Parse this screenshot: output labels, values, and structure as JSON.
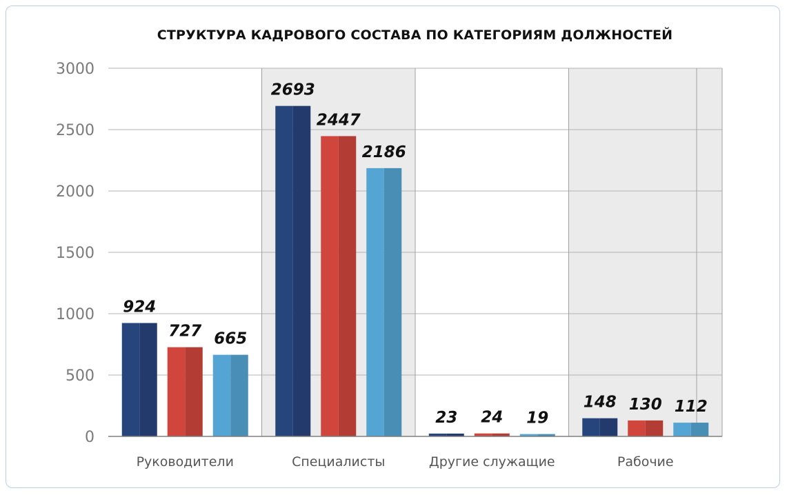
{
  "chart_data": {
    "type": "bar",
    "title": "СТРУКТУРА КАДРОВОГО СОСТАВА ПО КАТЕГОРИЯМ ДОЛЖНОСТЕЙ",
    "categories": [
      "Руководители",
      "Специалисты",
      "Другие служащие",
      "Рабочие"
    ],
    "series": [
      {
        "values": [
          924,
          2693,
          23,
          148
        ],
        "color": "#27457d"
      },
      {
        "values": [
          727,
          2447,
          24,
          130
        ],
        "color": "#d0463c"
      },
      {
        "values": [
          665,
          2186,
          19,
          112
        ],
        "color": "#54a5d3"
      }
    ],
    "ylim": [
      0,
      3000
    ],
    "yticks": [
      0,
      500,
      1000,
      1500,
      2000,
      2500,
      3000
    ],
    "grid": true,
    "legend": "none",
    "alternating_band_color": "#ebebeb"
  }
}
